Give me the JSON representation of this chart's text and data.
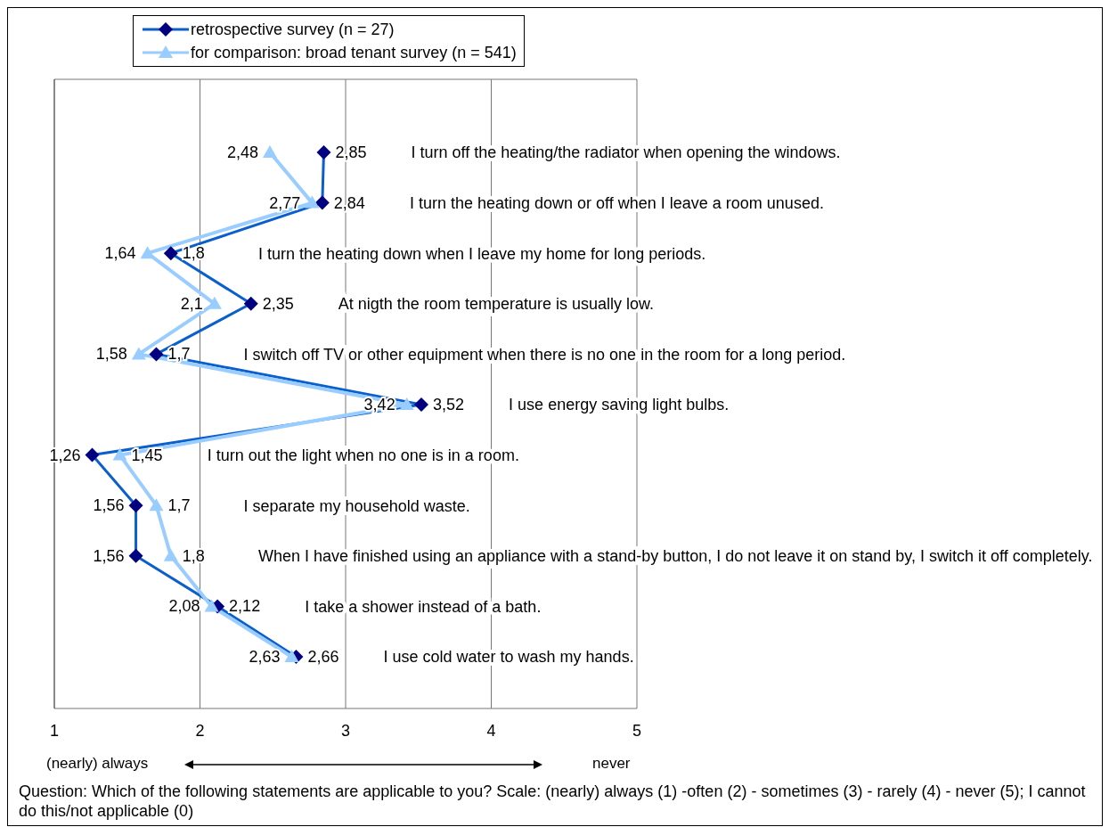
{
  "chart_data": {
    "type": "line",
    "orientation": "horizontal",
    "categories": [
      "I turn off the heating/the radiator when opening the windows.",
      "I turn the heating down or off when I leave a room unused.",
      "I turn the heating down when I leave my home for long periods.",
      "At nigth the room temperature is usually low.",
      "I switch off TV or other equipment when there is no one in the room for a long period.",
      "I use energy saving light bulbs.",
      "I turn out the light when no one is in a room.",
      "I separate my household waste.",
      "When I have finished using an appliance with a stand-by button, I do not leave it on stand by, I switch it off completely.",
      "I take a shower instead of a bath.",
      "I use cold water to wash my hands."
    ],
    "series": [
      {
        "name": "retrospective survey (n = 27)",
        "color": "#0b5fcc",
        "marker": "diamond",
        "values": [
          2.85,
          2.84,
          1.8,
          2.35,
          1.7,
          3.52,
          1.26,
          1.56,
          1.56,
          2.12,
          2.66
        ],
        "value_labels": [
          "2,85",
          "2,84",
          "1,8",
          "2,35",
          "1,7",
          "3,52",
          "1,26",
          "1,56",
          "1,56",
          "2,12",
          "2,66"
        ]
      },
      {
        "name": "for comparison: broad tenant survey (n = 541)",
        "color": "#99ccff",
        "marker": "triangle",
        "values": [
          2.48,
          2.77,
          1.64,
          2.1,
          1.58,
          3.42,
          1.45,
          1.7,
          1.8,
          2.08,
          2.63
        ],
        "value_labels": [
          "2,48",
          "2,77",
          "1,64",
          "2,1",
          "1,58",
          "3,42",
          "1,45",
          "1,7",
          "1,8",
          "2,08",
          "2,63"
        ]
      }
    ],
    "xlim": [
      1,
      5
    ],
    "xticks": [
      1,
      2,
      3,
      4,
      5
    ],
    "grid": "x",
    "legend": "top left",
    "line_style": "solid",
    "annotations": [
      "(nearly) always",
      "never",
      "Question: Which of the following statements are applicable to you? Scale: (nearly) always (1) -often (2) - sometimes (3) - rarely (4) - never (5); I cannot do this/not applicable (0)"
    ]
  }
}
